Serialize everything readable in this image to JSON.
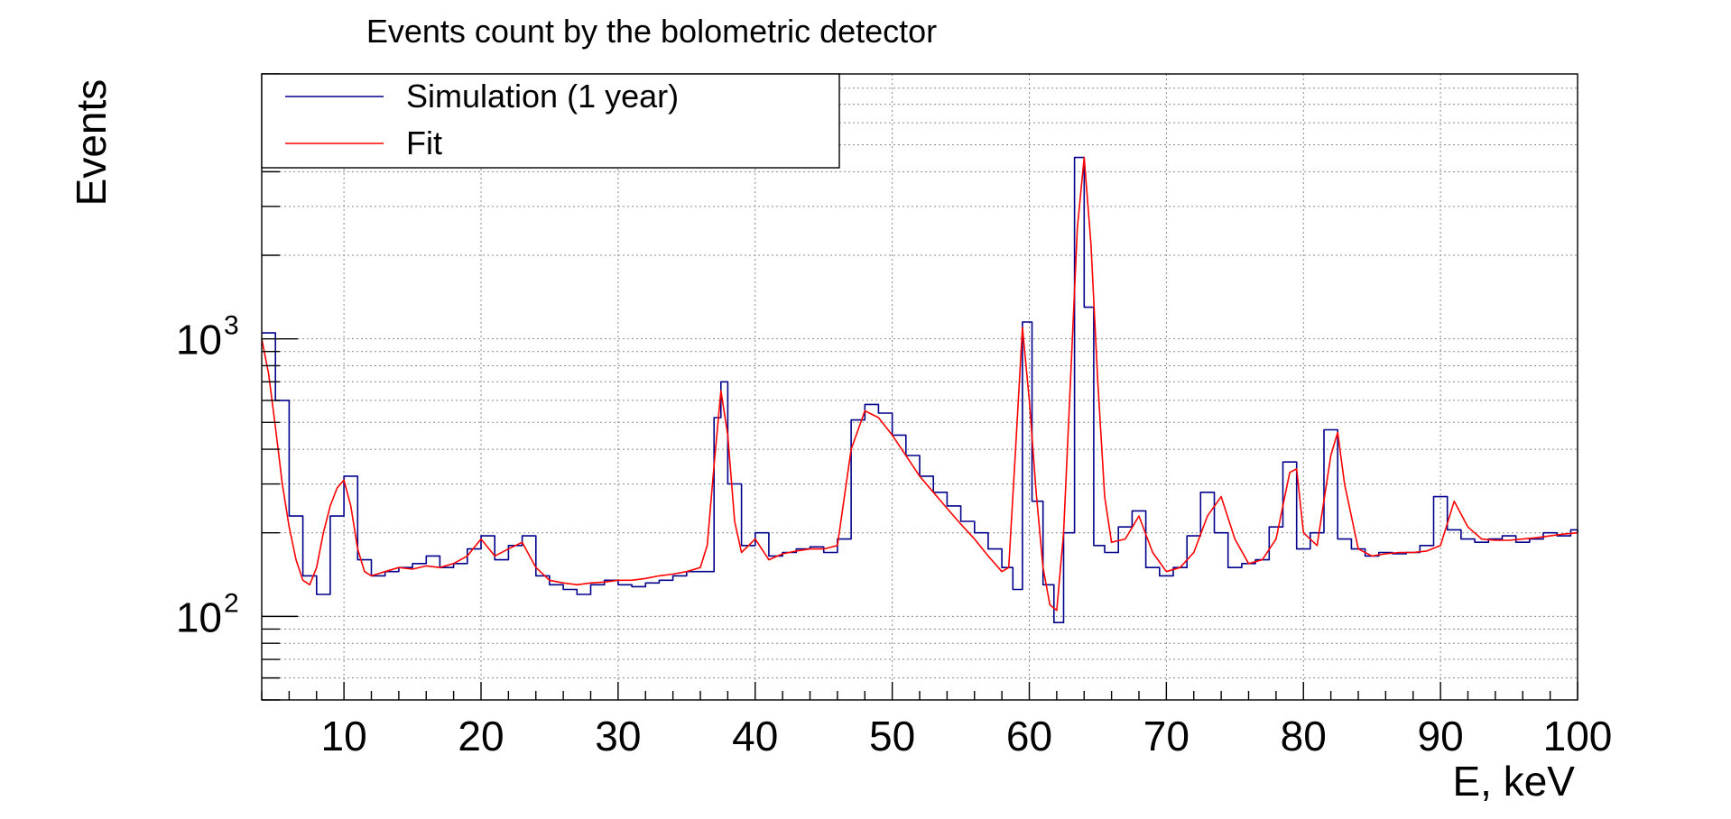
{
  "chart_data": {
    "type": "line",
    "title": "Events count by the bolometric detector",
    "xlabel": "E, keV",
    "ylabel": "Events",
    "xlim": [
      4,
      100
    ],
    "ylim": [
      50,
      9000
    ],
    "y_scale": "log",
    "grid": true,
    "legend_position": "top-left",
    "x_ticks": [
      10,
      20,
      30,
      40,
      50,
      60,
      70,
      80,
      90,
      100
    ],
    "y_ticks": [
      {
        "value": 100,
        "base": "10",
        "exp": "2"
      },
      {
        "value": 1000,
        "base": "10",
        "exp": "3"
      }
    ],
    "series": [
      {
        "name": "Simulation (1 year)",
        "color": "#00008b",
        "style": "histogram",
        "x": [
          4,
          5,
          6,
          7,
          8,
          9,
          10,
          11,
          12,
          13,
          14,
          15,
          16,
          17,
          18,
          19,
          20,
          21,
          22,
          23,
          24,
          25,
          26,
          27,
          28,
          29,
          30,
          31,
          32,
          33,
          34,
          35,
          36,
          37,
          37.5,
          38,
          39,
          40,
          41,
          42,
          43,
          44,
          45,
          46,
          47,
          48,
          49,
          50,
          51,
          52,
          53,
          54,
          55,
          56,
          57,
          58,
          58.8,
          59.5,
          60.2,
          61,
          61.8,
          62.5,
          63.3,
          64,
          64.7,
          65.5,
          66.5,
          67.5,
          68.5,
          69.5,
          70.5,
          71.5,
          72.5,
          73.5,
          74.5,
          75.5,
          76.5,
          77.5,
          78.5,
          79.5,
          80.5,
          81.5,
          82.5,
          83.5,
          84.5,
          85.5,
          86.5,
          87.5,
          88.5,
          89.5,
          90.5,
          91.5,
          92.5,
          93.5,
          94.5,
          95.5,
          96.5,
          97.5,
          98.5,
          99.5,
          100
        ],
        "values": [
          1050,
          600,
          230,
          140,
          120,
          230,
          320,
          160,
          140,
          145,
          150,
          155,
          165,
          150,
          155,
          175,
          195,
          160,
          180,
          195,
          140,
          130,
          125,
          120,
          130,
          135,
          130,
          128,
          132,
          135,
          140,
          145,
          145,
          520,
          700,
          300,
          180,
          200,
          165,
          170,
          175,
          178,
          170,
          190,
          510,
          580,
          540,
          450,
          380,
          320,
          280,
          250,
          220,
          200,
          175,
          150,
          125,
          1150,
          260,
          130,
          95,
          200,
          4500,
          1300,
          180,
          170,
          210,
          240,
          150,
          140,
          150,
          195,
          280,
          200,
          150,
          155,
          160,
          210,
          360,
          175,
          200,
          470,
          190,
          175,
          165,
          170,
          168,
          170,
          180,
          270,
          205,
          190,
          185,
          190,
          195,
          185,
          190,
          200,
          195,
          205,
          200
        ]
      },
      {
        "name": "Fit",
        "color": "#ff0000",
        "style": "line",
        "x": [
          4,
          4.5,
          5,
          5.5,
          6,
          6.5,
          7,
          7.5,
          8,
          8.5,
          9,
          9.5,
          10,
          10.5,
          11,
          11.5,
          12,
          13,
          14,
          15,
          16,
          17,
          18,
          19,
          20,
          21,
          22,
          23,
          24,
          25,
          26,
          27,
          28,
          29,
          30,
          31,
          32,
          33,
          34,
          35,
          36,
          36.5,
          37,
          37.5,
          38,
          38.5,
          39,
          40,
          41,
          42,
          43,
          44,
          45,
          46,
          47,
          48,
          49,
          50,
          51,
          52,
          53,
          54,
          55,
          56,
          57,
          58,
          58.5,
          59,
          59.5,
          60,
          60.5,
          61,
          61.5,
          62,
          62.5,
          63,
          63.5,
          64,
          64.5,
          65,
          65.5,
          66,
          67,
          68,
          69,
          70,
          71,
          72,
          73,
          74,
          75,
          76,
          77,
          78,
          79,
          79.5,
          80,
          81,
          82,
          82.5,
          83,
          84,
          85,
          86,
          87,
          88,
          89,
          90,
          91,
          92,
          93,
          94,
          95,
          96,
          97,
          98,
          99,
          100
        ],
        "values": [
          1000,
          750,
          480,
          300,
          210,
          160,
          135,
          130,
          150,
          200,
          250,
          290,
          310,
          250,
          175,
          145,
          140,
          145,
          150,
          148,
          152,
          150,
          155,
          165,
          190,
          165,
          175,
          185,
          150,
          135,
          132,
          130,
          132,
          133,
          135,
          135,
          137,
          140,
          142,
          145,
          150,
          180,
          350,
          650,
          450,
          220,
          170,
          190,
          160,
          168,
          172,
          175,
          175,
          180,
          400,
          550,
          520,
          450,
          380,
          320,
          280,
          245,
          215,
          190,
          165,
          145,
          150,
          400,
          1100,
          600,
          280,
          150,
          110,
          105,
          200,
          700,
          2500,
          4500,
          2200,
          700,
          270,
          185,
          190,
          230,
          170,
          145,
          150,
          170,
          230,
          270,
          190,
          155,
          160,
          190,
          330,
          340,
          200,
          180,
          380,
          460,
          300,
          175,
          165,
          168,
          170,
          170,
          172,
          180,
          260,
          210,
          190,
          188,
          188,
          190,
          192,
          195,
          198,
          200
        ]
      }
    ]
  }
}
